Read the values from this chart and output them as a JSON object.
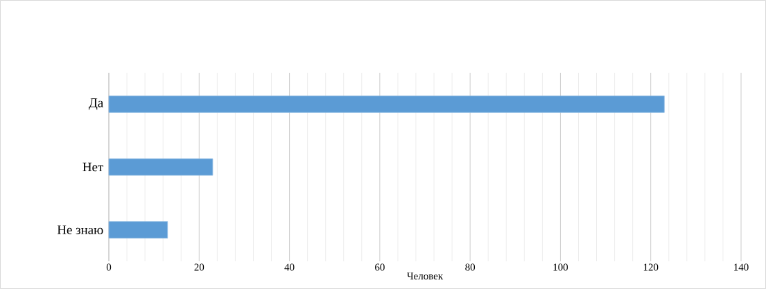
{
  "chart_data": {
    "type": "bar",
    "orientation": "horizontal",
    "categories": [
      "Да",
      "Нет",
      "Не знаю"
    ],
    "values": [
      123,
      23,
      13
    ],
    "color": "#5b9bd5",
    "xlabel": "Человек",
    "xlim": [
      0,
      140
    ],
    "xticks": [
      0,
      20,
      40,
      60,
      80,
      100,
      120,
      140
    ],
    "grid": "x"
  }
}
